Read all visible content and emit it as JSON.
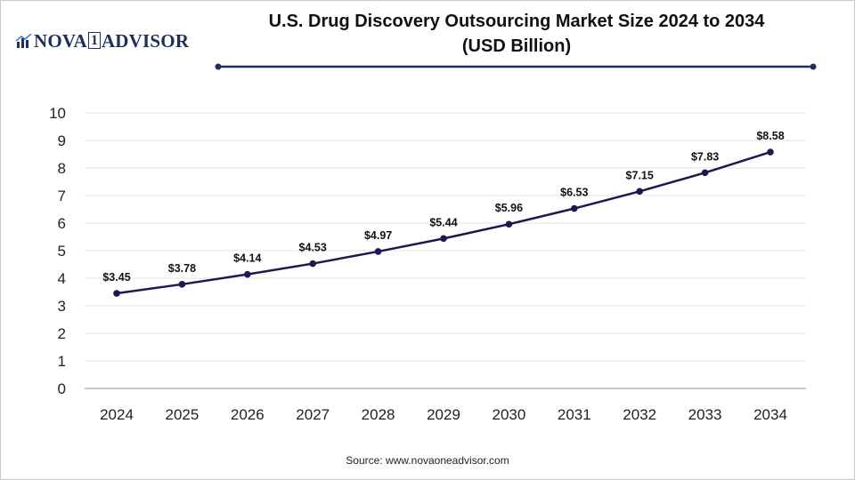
{
  "brand": {
    "name_part1": "NOVA",
    "name_box": "1",
    "name_part2": "ADVISOR"
  },
  "chart_data": {
    "type": "line",
    "title": "U.S. Drug Discovery Outsourcing Market Size 2024 to 2034",
    "subtitle": "(USD Billion)",
    "categories": [
      "2024",
      "2025",
      "2026",
      "2027",
      "2028",
      "2029",
      "2030",
      "2031",
      "2032",
      "2033",
      "2034"
    ],
    "values": [
      3.45,
      3.78,
      4.14,
      4.53,
      4.97,
      5.44,
      5.96,
      6.53,
      7.15,
      7.83,
      8.58
    ],
    "labels": [
      "$3.45",
      "$3.78",
      "$4.14",
      "$4.53",
      "$4.97",
      "$5.44",
      "$5.96",
      "$6.53",
      "$7.15",
      "$7.83",
      "$8.58"
    ],
    "yticks": [
      "0",
      "1",
      "2",
      "3",
      "4",
      "5",
      "6",
      "7",
      "8",
      "9",
      "10"
    ],
    "ylim": [
      0,
      10
    ],
    "xlabel": "",
    "ylabel": "",
    "grid": true,
    "line_color": "#1a1a4e"
  },
  "source": "Source: www.novaoneadvisor.com"
}
